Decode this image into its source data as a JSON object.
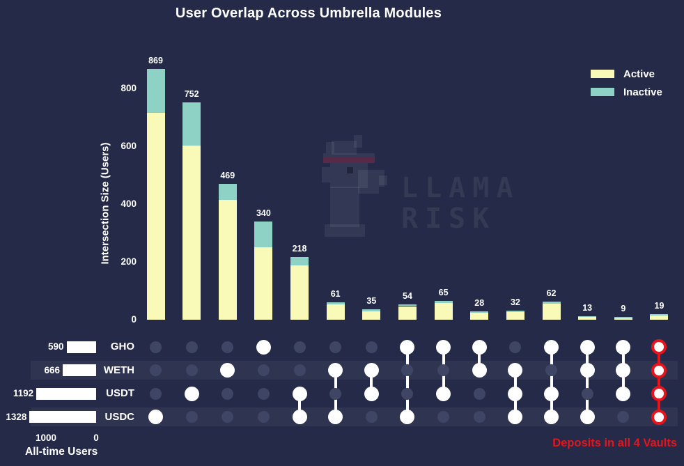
{
  "title": "User Overlap Across Umbrella Modules",
  "legend": {
    "items": [
      {
        "label": "Active",
        "color": "#fafab8"
      },
      {
        "label": "Inactive",
        "color": "#8dd2c4"
      }
    ]
  },
  "y_axis": {
    "label": "Intersection Size (Users)",
    "ticks": [
      0,
      200,
      400,
      600,
      800
    ]
  },
  "sets_axis": {
    "tick_left": "1000",
    "tick_right": "0",
    "label": "All-time Users"
  },
  "annotation": {
    "text": "Deposits in all 4 Vaults",
    "color": "#e8141c"
  },
  "watermark": {
    "line1": "LLAMA",
    "line2": "RISK"
  },
  "colors": {
    "background": "#242a47",
    "active": "#fafab8",
    "inactive": "#8dd2c4",
    "dot_inactive": "#3e4565",
    "dot_active": "#ffffff",
    "highlight": "#e8141c",
    "row_stripe": "rgba(255,255,255,0.05)",
    "text": "#ffffff"
  },
  "chart_data": {
    "type": "bar",
    "subtype": "upset-plot-stacked",
    "title": "User Overlap Across Umbrella Modules",
    "ylabel": "Intersection Size (Users)",
    "ylim": [
      0,
      900
    ],
    "grid": false,
    "legend_position": "top-right",
    "sets": [
      {
        "name": "GHO",
        "total": 590
      },
      {
        "name": "WETH",
        "total": 666
      },
      {
        "name": "USDT",
        "total": 1192
      },
      {
        "name": "USDC",
        "total": 1328
      }
    ],
    "sets_axis_range": [
      1000,
      0
    ],
    "series_names": [
      "Active",
      "Inactive"
    ],
    "intersections": [
      {
        "members": [
          "USDC"
        ],
        "total": 869,
        "active": 717,
        "inactive": 152
      },
      {
        "members": [
          "USDT"
        ],
        "total": 752,
        "active": 603,
        "inactive": 149
      },
      {
        "members": [
          "WETH"
        ],
        "total": 469,
        "active": 414,
        "inactive": 55
      },
      {
        "members": [
          "GHO"
        ],
        "total": 340,
        "active": 251,
        "inactive": 89
      },
      {
        "members": [
          "USDT",
          "USDC"
        ],
        "total": 218,
        "active": 187,
        "inactive": 31
      },
      {
        "members": [
          "WETH",
          "USDC"
        ],
        "total": 61,
        "active": 53,
        "inactive": 8
      },
      {
        "members": [
          "WETH",
          "USDT"
        ],
        "total": 35,
        "active": 30,
        "inactive": 5
      },
      {
        "members": [
          "GHO",
          "USDC"
        ],
        "total": 54,
        "active": 47,
        "inactive": 7
      },
      {
        "members": [
          "GHO",
          "USDT"
        ],
        "total": 65,
        "active": 57,
        "inactive": 8
      },
      {
        "members": [
          "GHO",
          "WETH"
        ],
        "total": 28,
        "active": 23,
        "inactive": 5
      },
      {
        "members": [
          "WETH",
          "USDT",
          "USDC"
        ],
        "total": 32,
        "active": 27,
        "inactive": 5
      },
      {
        "members": [
          "GHO",
          "USDT",
          "USDC"
        ],
        "total": 62,
        "active": 55,
        "inactive": 7
      },
      {
        "members": [
          "GHO",
          "WETH",
          "USDC"
        ],
        "total": 13,
        "active": 9,
        "inactive": 4
      },
      {
        "members": [
          "GHO",
          "WETH",
          "USDT"
        ],
        "total": 9,
        "active": 4,
        "inactive": 5
      },
      {
        "members": [
          "GHO",
          "WETH",
          "USDT",
          "USDC"
        ],
        "total": 19,
        "active": 14,
        "inactive": 5,
        "highlight": true
      }
    ]
  }
}
